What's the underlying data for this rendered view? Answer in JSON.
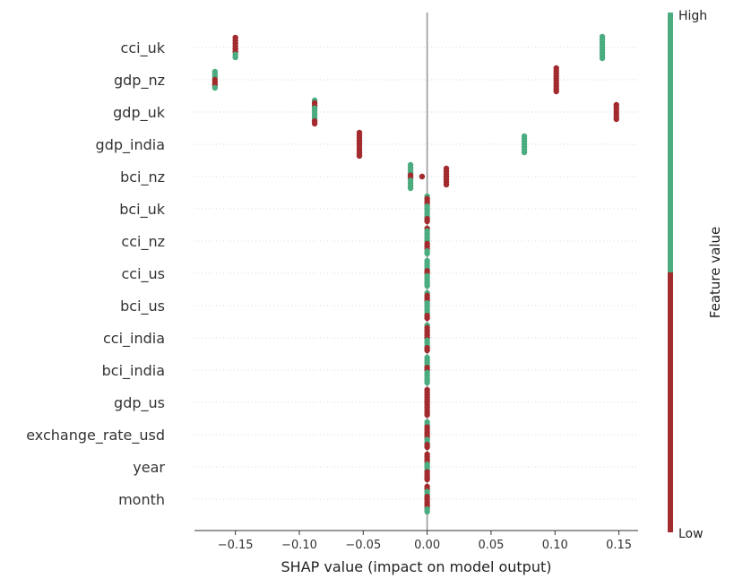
{
  "chart_data": {
    "type": "scatter",
    "title": "",
    "xlabel": "SHAP value (impact on model output)",
    "ylabel": "",
    "xlim": [
      -0.182,
      0.165
    ],
    "xticks": [
      {
        "value": -0.15,
        "label": "−0.15"
      },
      {
        "value": -0.1,
        "label": "−0.10"
      },
      {
        "value": -0.05,
        "label": "−0.05"
      },
      {
        "value": 0.0,
        "label": "0.00"
      },
      {
        "value": 0.05,
        "label": "0.05"
      },
      {
        "value": 0.1,
        "label": "0.10"
      },
      {
        "value": 0.15,
        "label": "0.15"
      }
    ],
    "grid": false,
    "colors": {
      "high": "#4aac7f",
      "low": "#a22b2e",
      "zero_line": "#999999",
      "row_line": "#cccccc",
      "text": "#333333"
    },
    "colorbar": {
      "high_label": "High",
      "low_label": "Low",
      "title": "Feature value"
    },
    "features": [
      {
        "name": "cci_uk",
        "clusters": [
          {
            "x": -0.15,
            "spread": 11,
            "color": "low",
            "mix": 0.3
          },
          {
            "x": 0.137,
            "spread": 12,
            "color": "high",
            "mix": 0
          }
        ]
      },
      {
        "name": "gdp_nz",
        "clusters": [
          {
            "x": -0.166,
            "spread": 9,
            "color": "high",
            "mix": 0.5
          },
          {
            "x": 0.101,
            "spread": 13,
            "color": "low",
            "mix": 0
          }
        ]
      },
      {
        "name": "gdp_uk",
        "clusters": [
          {
            "x": -0.088,
            "spread": 13,
            "color": "high",
            "mix": 0.5
          },
          {
            "x": 0.148,
            "spread": 8,
            "color": "low",
            "mix": 0
          }
        ]
      },
      {
        "name": "gdp_india",
        "clusters": [
          {
            "x": -0.053,
            "spread": 13,
            "color": "low",
            "mix": 0
          },
          {
            "x": 0.076,
            "spread": 9,
            "color": "high",
            "mix": 0.1
          }
        ]
      },
      {
        "name": "bci_nz",
        "clusters": [
          {
            "x": -0.013,
            "spread": 13,
            "color": "high",
            "mix": 0.35
          },
          {
            "x": -0.004,
            "spread": 0,
            "color": "low",
            "mix": 0
          },
          {
            "x": 0.015,
            "spread": 9,
            "color": "low",
            "mix": 0
          }
        ]
      },
      {
        "name": "bci_uk",
        "clusters": [
          {
            "x": 0.0,
            "spread": 14,
            "color": "high",
            "mix": 0.5
          }
        ]
      },
      {
        "name": "cci_nz",
        "clusters": [
          {
            "x": 0.0,
            "spread": 14,
            "color": "high",
            "mix": 0.5
          }
        ]
      },
      {
        "name": "cci_us",
        "clusters": [
          {
            "x": 0.0,
            "spread": 14,
            "color": "high",
            "mix": 0.5
          }
        ]
      },
      {
        "name": "bci_us",
        "clusters": [
          {
            "x": 0.0,
            "spread": 14,
            "color": "high",
            "mix": 0.5
          }
        ]
      },
      {
        "name": "cci_india",
        "clusters": [
          {
            "x": 0.0,
            "spread": 14,
            "color": "low",
            "mix": 0.5
          }
        ]
      },
      {
        "name": "bci_india",
        "clusters": [
          {
            "x": 0.0,
            "spread": 14,
            "color": "high",
            "mix": 0.5
          }
        ]
      },
      {
        "name": "gdp_us",
        "clusters": [
          {
            "x": 0.0,
            "spread": 14,
            "color": "low",
            "mix": 0.1
          }
        ]
      },
      {
        "name": "exchange_rate_usd",
        "clusters": [
          {
            "x": 0.0,
            "spread": 14,
            "color": "low",
            "mix": 0.5
          }
        ]
      },
      {
        "name": "year",
        "clusters": [
          {
            "x": 0.0,
            "spread": 14,
            "color": "low",
            "mix": 0.5
          }
        ]
      },
      {
        "name": "month",
        "clusters": [
          {
            "x": 0.0,
            "spread": 14,
            "color": "low",
            "mix": 0.5
          }
        ]
      }
    ]
  }
}
